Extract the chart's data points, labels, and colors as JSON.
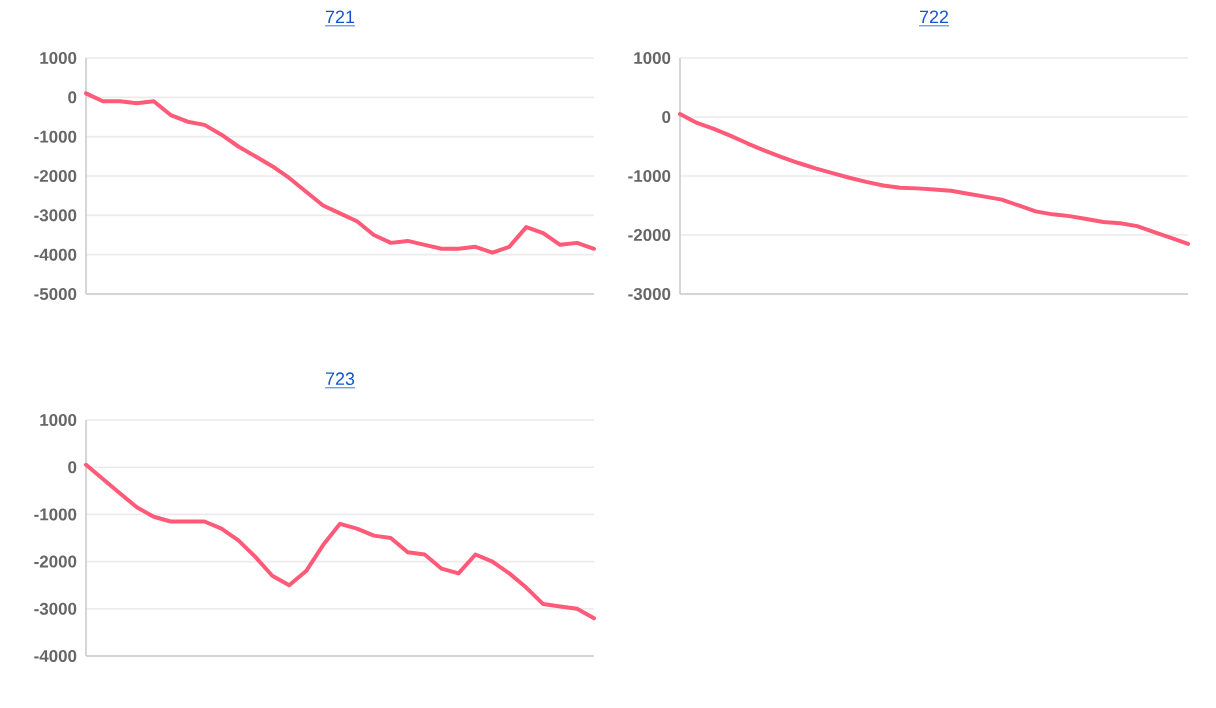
{
  "chart_data": [
    {
      "type": "line",
      "title": "721",
      "categories": [
        null,
        null,
        null,
        null,
        null,
        null,
        null,
        null,
        null,
        null,
        null,
        null,
        null,
        null,
        null,
        null,
        null,
        null,
        null,
        null,
        null,
        null,
        null,
        null,
        null,
        null,
        null,
        null,
        null,
        null,
        null
      ],
      "color": "#ff5a78",
      "ylim": [
        -5000,
        1000
      ],
      "yticks": [
        -5000,
        -4000,
        -3000,
        -2000,
        -1000,
        0,
        1000
      ],
      "grid": "y",
      "tick_labels": "y",
      "values": [
        100,
        -100,
        -100,
        -150,
        -100,
        -450,
        -620,
        -700,
        -950,
        -1250,
        -1500,
        -1750,
        -2050,
        -2400,
        -2750,
        -2950,
        -3150,
        -3500,
        -3700,
        -3650,
        -3750,
        -3850,
        -3850,
        -3800,
        -3950,
        -3800,
        -3300,
        -3450,
        -3750,
        -3700,
        -3850
      ]
    },
    {
      "type": "line",
      "title": "722",
      "categories": [
        null,
        null,
        null,
        null,
        null,
        null,
        null,
        null,
        null,
        null,
        null,
        null,
        null,
        null,
        null,
        null,
        null,
        null,
        null,
        null,
        null,
        null,
        null,
        null,
        null,
        null,
        null,
        null,
        null,
        null,
        null
      ],
      "color": "#ff5a78",
      "ylim": [
        -3000,
        1000
      ],
      "yticks": [
        -3000,
        -2000,
        -1000,
        0,
        1000
      ],
      "grid": "y",
      "tick_labels": "y",
      "values": [
        50,
        -100,
        -200,
        -320,
        -450,
        -570,
        -680,
        -780,
        -870,
        -950,
        -1030,
        -1100,
        -1160,
        -1200,
        -1210,
        -1230,
        -1250,
        -1300,
        -1350,
        -1400,
        -1500,
        -1600,
        -1650,
        -1680,
        -1730,
        -1780,
        -1800,
        -1850,
        -1950,
        -2050,
        -2150
      ]
    },
    {
      "type": "line",
      "title": "723",
      "categories": [
        null,
        null,
        null,
        null,
        null,
        null,
        null,
        null,
        null,
        null,
        null,
        null,
        null,
        null,
        null,
        null,
        null,
        null,
        null,
        null,
        null,
        null,
        null,
        null,
        null,
        null,
        null,
        null,
        null,
        null,
        null
      ],
      "color": "#ff5a78",
      "ylim": [
        -4000,
        1000
      ],
      "yticks": [
        -4000,
        -3000,
        -2000,
        -1000,
        0,
        1000
      ],
      "grid": "y",
      "tick_labels": "y",
      "values": [
        50,
        -250,
        -550,
        -850,
        -1050,
        -1150,
        -1150,
        -1150,
        -1300,
        -1550,
        -1900,
        -2300,
        -2500,
        -2200,
        -1650,
        -1200,
        -1300,
        -1450,
        -1500,
        -1800,
        -1850,
        -2150,
        -2250,
        -1850,
        -2000,
        -2250,
        -2550,
        -2900,
        -2950,
        -3000,
        -3200
      ]
    }
  ]
}
